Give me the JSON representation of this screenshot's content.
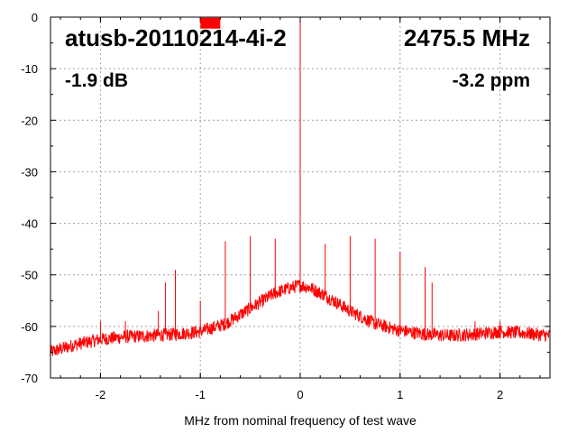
{
  "chart_data": {
    "type": "line",
    "title": "atusb-20110214-4i-2",
    "frequency": "2475.5 MHz",
    "level": "-1.9 dB",
    "offset": "-3.2 ppm",
    "xlabel": "MHz from nominal frequency of test wave",
    "ylabel": "",
    "xlim": [
      -2.5,
      2.5
    ],
    "ylim": [
      -70,
      0
    ],
    "x_ticks": [
      -2,
      -1,
      0,
      1,
      2
    ],
    "x_tick_labels": [
      "-2",
      "-1",
      "0",
      "1",
      "2"
    ],
    "y_ticks": [
      0,
      -10,
      -20,
      -30,
      -40,
      -50,
      -60,
      -70
    ],
    "y_tick_labels": [
      "0",
      "-10",
      "-20",
      "-30",
      "-40",
      "-50",
      "-60",
      "-70"
    ],
    "grid": true,
    "series_color": "#ff0000",
    "marker": {
      "x": -0.9,
      "y": -1,
      "color": "#ff0000"
    },
    "noise_floor_points": [
      {
        "x": -2.5,
        "y": -65
      },
      {
        "x": -2.25,
        "y": -63.5
      },
      {
        "x": -2.0,
        "y": -62.5
      },
      {
        "x": -1.75,
        "y": -62
      },
      {
        "x": -1.5,
        "y": -61.8
      },
      {
        "x": -1.25,
        "y": -61.5
      },
      {
        "x": -1.0,
        "y": -61
      },
      {
        "x": -0.75,
        "y": -59.5
      },
      {
        "x": -0.5,
        "y": -56.5
      },
      {
        "x": -0.25,
        "y": -53.5
      },
      {
        "x": -0.1,
        "y": -52.5
      },
      {
        "x": 0.0,
        "y": -52
      },
      {
        "x": 0.1,
        "y": -52.5
      },
      {
        "x": 0.25,
        "y": -54
      },
      {
        "x": 0.5,
        "y": -57
      },
      {
        "x": 0.75,
        "y": -59.5
      },
      {
        "x": 1.0,
        "y": -60.8
      },
      {
        "x": 1.25,
        "y": -61.5
      },
      {
        "x": 1.5,
        "y": -61.8
      },
      {
        "x": 1.75,
        "y": -61.5
      },
      {
        "x": 2.0,
        "y": -61
      },
      {
        "x": 2.25,
        "y": -61.3
      },
      {
        "x": 2.5,
        "y": -61.8
      }
    ],
    "spurs": [
      {
        "x": -2.0,
        "y": -59
      },
      {
        "x": -1.75,
        "y": -59
      },
      {
        "x": -1.42,
        "y": -57
      },
      {
        "x": -1.35,
        "y": -51.5
      },
      {
        "x": -1.25,
        "y": -49
      },
      {
        "x": -1.0,
        "y": -55
      },
      {
        "x": -0.75,
        "y": -43.5
      },
      {
        "x": -0.5,
        "y": -42.5
      },
      {
        "x": -0.25,
        "y": -43
      },
      {
        "x": 0.0,
        "y": 0
      },
      {
        "x": 0.25,
        "y": -44
      },
      {
        "x": 0.5,
        "y": -42.5
      },
      {
        "x": 0.75,
        "y": -43
      },
      {
        "x": 1.0,
        "y": -45.5
      },
      {
        "x": 1.25,
        "y": -48.5
      },
      {
        "x": 1.32,
        "y": -51.5
      },
      {
        "x": 1.75,
        "y": -59
      },
      {
        "x": 2.0,
        "y": -59
      }
    ]
  }
}
